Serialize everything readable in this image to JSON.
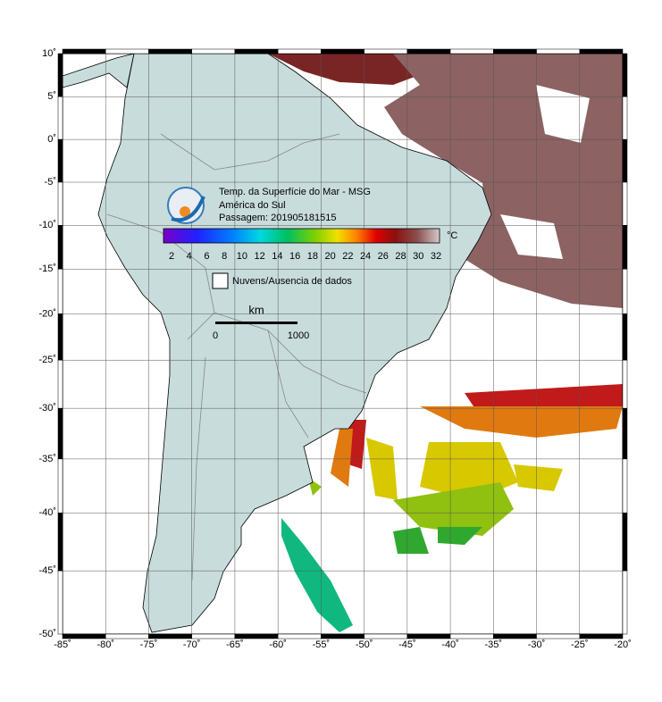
{
  "map": {
    "title": "Temp. da Superfície do Mar - MSG",
    "region": "América do Sul",
    "pass": "Passagem: 201905181515",
    "colorbar": {
      "unit": "°C",
      "ticks": [
        2,
        4,
        6,
        8,
        10,
        12,
        14,
        16,
        18,
        20,
        22,
        24,
        26,
        28,
        30,
        32
      ]
    },
    "legend": "Nuvens/Ausencia de dados",
    "scale": {
      "unit": "km",
      "start": 0,
      "end": 1000
    },
    "lonticks": [
      {
        "value": -85,
        "label": "-85˚"
      },
      {
        "value": -80,
        "label": "-80˚"
      },
      {
        "value": -75,
        "label": "-75˚"
      },
      {
        "value": -70,
        "label": "-70˚"
      },
      {
        "value": -65,
        "label": "-65˚"
      },
      {
        "value": -60,
        "label": "-60˚"
      },
      {
        "value": -55,
        "label": "-55˚"
      },
      {
        "value": -50,
        "label": "-50˚"
      },
      {
        "value": -45,
        "label": "-45˚"
      },
      {
        "value": -40,
        "label": "-40˚"
      },
      {
        "value": -35,
        "label": "-35˚"
      },
      {
        "value": -30,
        "label": "-30˚"
      },
      {
        "value": -25,
        "label": "-25˚"
      },
      {
        "value": -20,
        "label": "-20˚"
      }
    ],
    "latticks": [
      {
        "value": 10,
        "label": "10˚"
      },
      {
        "value": 5,
        "label": "5˚"
      },
      {
        "value": 0,
        "label": "0˚"
      },
      {
        "value": -5,
        "label": "-5˚"
      },
      {
        "value": -10,
        "label": "-10˚"
      },
      {
        "value": -15,
        "label": "-15˚"
      },
      {
        "value": -20,
        "label": "-20˚"
      },
      {
        "value": -25,
        "label": "-25˚"
      },
      {
        "value": -30,
        "label": "-30˚"
      },
      {
        "value": -35,
        "label": "-35˚"
      },
      {
        "value": -40,
        "label": "-40˚"
      },
      {
        "value": -45,
        "label": "-45˚"
      },
      {
        "value": -50,
        "label": "-50˚"
      }
    ]
  }
}
